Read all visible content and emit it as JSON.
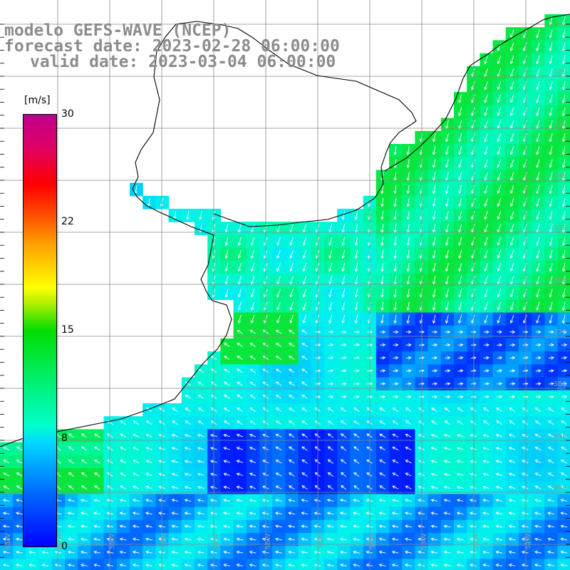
{
  "title": {
    "line1": "modelo GEFS-WAVE (NCEP)",
    "line2": "forecast date: 2023-02-28 06:00:00",
    "line3": "valid date: 2023-03-04 06:00:00"
  },
  "colorbar": {
    "unit": "[m/s]",
    "ticks": [
      "30",
      "22",
      "15",
      "8",
      "0"
    ],
    "colors": [
      "#0000ff",
      "#00d8ff",
      "#00dd00",
      "#ffff00",
      "#ff0000",
      "#c0008c"
    ]
  },
  "grid": {
    "lat_labels_right": [
      "32S",
      "33S",
      "34S",
      "35S",
      "36S",
      "37S",
      "38S",
      "39S",
      "40S"
    ],
    "lon_labels_bottom": [
      "61W",
      "60W",
      "59W",
      "58W",
      "57W",
      "56W",
      "55W",
      "54W",
      "53W",
      "52W",
      "51W"
    ]
  },
  "colors": {
    "land": "#ffffff",
    "coast": "#000000",
    "grid": "#8a8a8a",
    "arrow": "#ffffff",
    "label": "#8c8c8c"
  }
}
